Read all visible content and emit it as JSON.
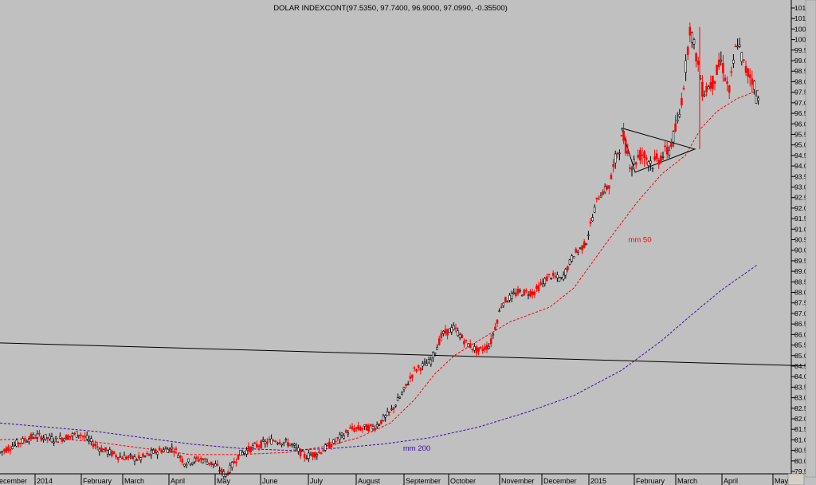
{
  "chart_data": {
    "type": "line",
    "title": "DOLAR INDEXCONT(97.5350, 97.7400, 96.9000, 97.0990, -0.35500)",
    "y_ticks": [
      "79.5",
      "80.0",
      "80.5",
      "81.0",
      "81.5",
      "82.0",
      "82.5",
      "83.0",
      "83.5",
      "84.0",
      "84.5",
      "85.0",
      "85.5",
      "86.0",
      "86.5",
      "87.0",
      "87.5",
      "88.0",
      "88.5",
      "89.0",
      "89.5",
      "90.0",
      "90.5",
      "91.0",
      "91.5",
      "92.0",
      "92.5",
      "93.0",
      "93.5",
      "94.0",
      "94.5",
      "95.0",
      "95.5",
      "96.0",
      "96.5",
      "97.0",
      "97.5",
      "98.0",
      "98.5",
      "99.0",
      "99.5",
      "100.0",
      "100.5",
      "101.0",
      "101.5"
    ],
    "ylim": [
      79.0,
      101.8
    ],
    "x_ticks": [
      "ecember",
      "2014",
      "February",
      "March",
      "April",
      "May",
      "June",
      "July",
      "August",
      "September",
      "October",
      "November",
      "December",
      "2015",
      "February",
      "March",
      "April",
      "May"
    ],
    "grid": false,
    "series": [
      {
        "name": "DOLAR INDEXCONT",
        "style": "candlestick",
        "color": "#000000",
        "points": [
          [
            0,
            80.4
          ],
          [
            20,
            80.8
          ],
          [
            45,
            81.2
          ],
          [
            70,
            81.0
          ],
          [
            100,
            81.3
          ],
          [
            125,
            80.6
          ],
          [
            150,
            80.2
          ],
          [
            175,
            80.1
          ],
          [
            200,
            80.5
          ],
          [
            218,
            80.6
          ],
          [
            232,
            79.9
          ],
          [
            252,
            80.1
          ],
          [
            270,
            79.8
          ],
          [
            283,
            79.3
          ],
          [
            300,
            80.3
          ],
          [
            320,
            80.7
          ],
          [
            345,
            81.0
          ],
          [
            365,
            80.8
          ],
          [
            383,
            80.2
          ],
          [
            400,
            80.4
          ],
          [
            420,
            80.9
          ],
          [
            440,
            81.5
          ],
          [
            470,
            81.6
          ],
          [
            490,
            82.3
          ],
          [
            505,
            83.2
          ],
          [
            520,
            84.3
          ],
          [
            540,
            84.7
          ],
          [
            555,
            86.0
          ],
          [
            570,
            86.3
          ],
          [
            585,
            85.6
          ],
          [
            600,
            85.2
          ],
          [
            615,
            85.5
          ],
          [
            630,
            87.5
          ],
          [
            650,
            88.0
          ],
          [
            670,
            88.0
          ],
          [
            690,
            88.8
          ],
          [
            705,
            88.6
          ],
          [
            720,
            89.8
          ],
          [
            735,
            90.3
          ],
          [
            750,
            92.5
          ],
          [
            765,
            93.1
          ],
          [
            775,
            94.7
          ],
          [
            782,
            95.4
          ],
          [
            792,
            94.0
          ],
          [
            805,
            94.6
          ],
          [
            820,
            94.1
          ],
          [
            840,
            94.8
          ],
          [
            852,
            96.2
          ],
          [
            860,
            98.5
          ],
          [
            866,
            100.6
          ],
          [
            875,
            99.0
          ],
          [
            882,
            97.5
          ],
          [
            895,
            98.0
          ],
          [
            905,
            99.0
          ],
          [
            915,
            97.5
          ],
          [
            925,
            100.0
          ],
          [
            935,
            98.6
          ],
          [
            945,
            98.1
          ],
          [
            950,
            97.1
          ]
        ]
      },
      {
        "name": "mm 50",
        "style": "dashed",
        "color": "#ff0000",
        "points": [
          [
            0,
            81.0
          ],
          [
            60,
            81.1
          ],
          [
            120,
            80.9
          ],
          [
            180,
            80.6
          ],
          [
            240,
            80.3
          ],
          [
            300,
            80.3
          ],
          [
            360,
            80.4
          ],
          [
            410,
            80.7
          ],
          [
            450,
            81.1
          ],
          [
            490,
            81.8
          ],
          [
            520,
            82.9
          ],
          [
            545,
            84.1
          ],
          [
            570,
            85.0
          ],
          [
            600,
            85.7
          ],
          [
            640,
            86.6
          ],
          [
            690,
            87.3
          ],
          [
            720,
            88.2
          ],
          [
            760,
            90.3
          ],
          [
            800,
            92.3
          ],
          [
            830,
            93.6
          ],
          [
            860,
            94.5
          ],
          [
            880,
            95.8
          ],
          [
            900,
            96.6
          ],
          [
            925,
            97.2
          ],
          [
            952,
            97.6
          ]
        ]
      },
      {
        "name": "mm 200",
        "style": "dashed",
        "color": "#3a0aa0",
        "points": [
          [
            0,
            81.8
          ],
          [
            60,
            81.6
          ],
          [
            120,
            81.4
          ],
          [
            180,
            81.1
          ],
          [
            240,
            80.8
          ],
          [
            300,
            80.6
          ],
          [
            360,
            80.5
          ],
          [
            420,
            80.6
          ],
          [
            480,
            80.8
          ],
          [
            540,
            81.1
          ],
          [
            600,
            81.6
          ],
          [
            660,
            82.3
          ],
          [
            720,
            83.1
          ],
          [
            780,
            84.3
          ],
          [
            830,
            85.7
          ],
          [
            870,
            87.0
          ],
          [
            905,
            88.1
          ],
          [
            950,
            89.3
          ]
        ]
      },
      {
        "name": "trend line",
        "style": "solid",
        "color": "#000000",
        "points": [
          [
            0,
            85.6
          ],
          [
            1024,
            84.5
          ]
        ]
      },
      {
        "name": "triangle",
        "style": "solid",
        "color": "#000000",
        "points": [
          [
            780,
            95.8
          ],
          [
            872,
            94.8
          ],
          [
            797,
            93.7
          ],
          [
            780,
            95.8
          ]
        ]
      }
    ],
    "annotations": [
      {
        "text": "mm 50",
        "x": 803,
        "y": 90.5
      },
      {
        "text": "mm 200",
        "x": 523,
        "y": 80.6
      }
    ]
  }
}
